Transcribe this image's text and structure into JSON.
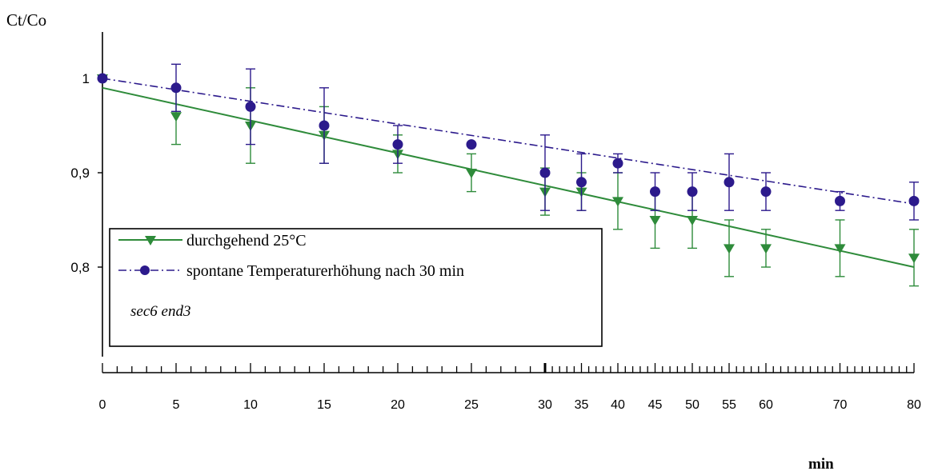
{
  "chart_data": {
    "type": "line",
    "ylabel": "Ct/Co",
    "xlabel": "min",
    "x": [
      0,
      5,
      10,
      15,
      20,
      25,
      30,
      35,
      40,
      45,
      50,
      55,
      60,
      70,
      80
    ],
    "x_tick_labels": [
      "0",
      "5",
      "10",
      "15",
      "20",
      "25",
      "30",
      "35",
      "40",
      "45",
      "50",
      "55",
      "60",
      "70",
      "80"
    ],
    "y_ticks": [
      1,
      0.9,
      0.8
    ],
    "y_tick_labels": [
      "1",
      "0,9",
      "0,8"
    ],
    "ylim": [
      0.705,
      1.05
    ],
    "grid": false,
    "legend_position": "lower-left",
    "annotation": "sec6 end3",
    "series": [
      {
        "name": "durchgehend 25°C",
        "color": "#2e8b3a",
        "marker": "triangle-down",
        "line_style": "solid",
        "points": [
          {
            "x": 0,
            "y": 1.0,
            "err": 0
          },
          {
            "x": 5,
            "y": 0.96,
            "err": 0.03
          },
          {
            "x": 10,
            "y": 0.95,
            "err": 0.04
          },
          {
            "x": 15,
            "y": 0.94,
            "err": 0.03
          },
          {
            "x": 20,
            "y": 0.92,
            "err": 0.02
          },
          {
            "x": 25,
            "y": 0.9,
            "err": 0.02
          },
          {
            "x": 30,
            "y": 0.88,
            "err": 0.025
          },
          {
            "x": 35,
            "y": 0.88,
            "err": 0.02
          },
          {
            "x": 40,
            "y": 0.87,
            "err": 0.03
          },
          {
            "x": 45,
            "y": 0.85,
            "err": 0.03
          },
          {
            "x": 50,
            "y": 0.85,
            "err": 0.03
          },
          {
            "x": 55,
            "y": 0.82,
            "err": 0.03
          },
          {
            "x": 60,
            "y": 0.82,
            "err": 0.02
          },
          {
            "x": 70,
            "y": 0.82,
            "err": 0.03
          },
          {
            "x": 80,
            "y": 0.81,
            "err": 0.03
          }
        ],
        "trend": {
          "x": [
            0,
            80
          ],
          "y": [
            0.99,
            0.8
          ]
        }
      },
      {
        "name": "spontane Temperaturerhöhung nach 30 min",
        "color": "#2c1a8c",
        "marker": "circle",
        "line_style": "dash-dot",
        "points": [
          {
            "x": 0,
            "y": 1.0,
            "err": 0
          },
          {
            "x": 5,
            "y": 0.99,
            "err": 0.025
          },
          {
            "x": 10,
            "y": 0.97,
            "err": 0.04
          },
          {
            "x": 15,
            "y": 0.95,
            "err": 0.04
          },
          {
            "x": 20,
            "y": 0.93,
            "err": 0.02
          },
          {
            "x": 25,
            "y": 0.93,
            "err": 0
          },
          {
            "x": 30,
            "y": 0.9,
            "err": 0.04
          },
          {
            "x": 35,
            "y": 0.89,
            "err": 0.03
          },
          {
            "x": 40,
            "y": 0.91,
            "err": 0.01
          },
          {
            "x": 45,
            "y": 0.88,
            "err": 0.02
          },
          {
            "x": 50,
            "y": 0.88,
            "err": 0.02
          },
          {
            "x": 55,
            "y": 0.89,
            "err": 0.03
          },
          {
            "x": 60,
            "y": 0.88,
            "err": 0.02
          },
          {
            "x": 70,
            "y": 0.87,
            "err": 0.01
          },
          {
            "x": 80,
            "y": 0.87,
            "err": 0.02
          }
        ],
        "trend": {
          "x": [
            0,
            80
          ],
          "y": [
            1.0,
            0.867
          ]
        }
      }
    ]
  }
}
